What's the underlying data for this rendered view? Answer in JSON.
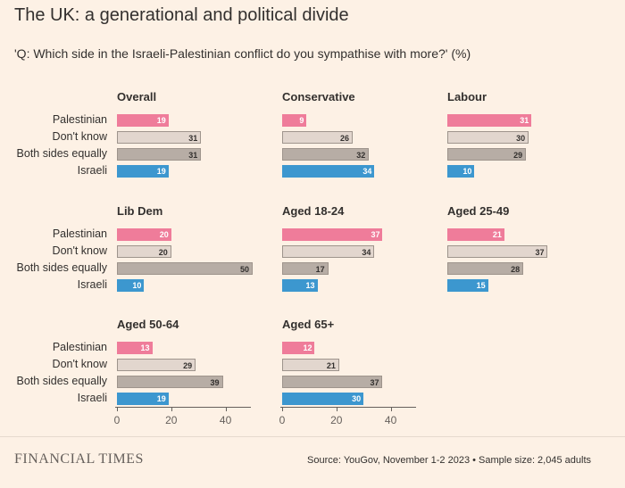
{
  "title": "The UK: a generational and political divide",
  "subtitle": "'Q: Which side in the Israeli-Palestinian conflict do you sympathise with more?' (%)",
  "colors": {
    "Palestinian": "#ef7c9a",
    "Don't know": "#e2d6ce",
    "Both sides equally": "#b7ada5",
    "Israeli": "#3c97cf"
  },
  "chart_data": {
    "type": "bar",
    "orientation": "horizontal",
    "categories": [
      "Palestinian",
      "Don't know",
      "Both sides equally",
      "Israeli"
    ],
    "xlim": [
      0,
      50
    ],
    "xticks": [
      0,
      20,
      40
    ],
    "panels": [
      {
        "name": "Overall",
        "values": [
          19,
          31,
          31,
          19
        ]
      },
      {
        "name": "Conservative",
        "values": [
          9,
          26,
          32,
          34
        ]
      },
      {
        "name": "Labour",
        "values": [
          31,
          30,
          29,
          10
        ]
      },
      {
        "name": "Lib Dem",
        "values": [
          20,
          20,
          50,
          10
        ]
      },
      {
        "name": "Aged 18-24",
        "values": [
          37,
          34,
          17,
          13
        ]
      },
      {
        "name": "Aged 25-49",
        "values": [
          21,
          37,
          28,
          15
        ]
      },
      {
        "name": "Aged 50-64",
        "values": [
          13,
          29,
          39,
          19
        ]
      },
      {
        "name": "Aged 65+",
        "values": [
          12,
          21,
          37,
          30
        ]
      }
    ]
  },
  "footer": {
    "brand": "FINANCIAL TIMES",
    "source": "Source: YouGov, November 1-2 2023 • Sample size: 2,045 adults"
  }
}
